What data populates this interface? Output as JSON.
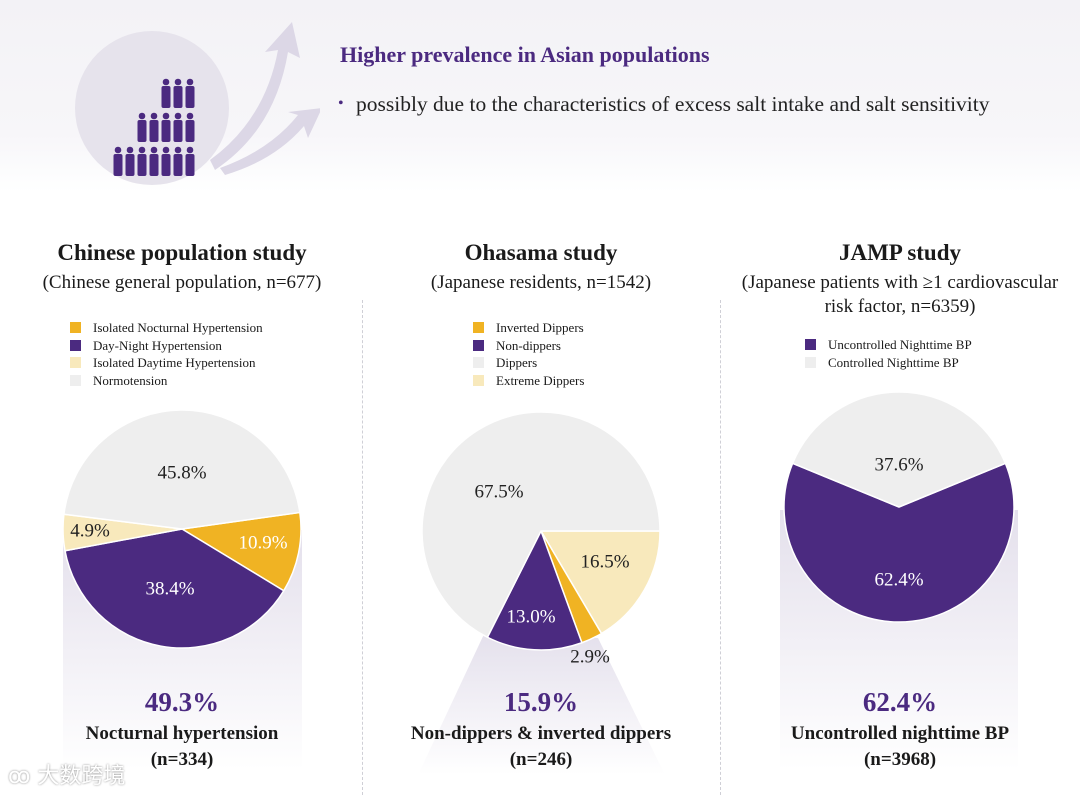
{
  "header": {
    "title": "Higher prevalence in Asian populations",
    "bullet": "possibly due to the characteristics of excess salt intake and salt sensitivity",
    "bullet_icon": "•",
    "illustration": "globe-people-pyramid-arrows-icon"
  },
  "colors": {
    "purple": "#4b2a80",
    "yellow": "#f0b323",
    "light_yellow": "#f8e9bc",
    "grey": "#eeeeee"
  },
  "chart_data": [
    {
      "type": "pie",
      "title": "Chinese population study",
      "subtitle": "(Chinese general population, n=677)",
      "legend": [
        "Isolated Nocturnal Hypertension",
        "Day-Night Hypertension",
        "Isolated Daytime Hypertension",
        "Normotension"
      ],
      "slices": [
        {
          "label": "Isolated Nocturnal Hypertension",
          "value": 10.9,
          "text": "10.9%",
          "color": "#f0b323"
        },
        {
          "label": "Day-Night Hypertension",
          "value": 38.4,
          "text": "38.4%",
          "color": "#4b2a80"
        },
        {
          "label": "Isolated Daytime Hypertension",
          "value": 4.9,
          "text": "4.9%",
          "color": "#f8e9bc"
        },
        {
          "label": "Normotension",
          "value": 45.8,
          "text": "45.8%",
          "color": "#eeeeee"
        }
      ],
      "highlight_value": "49.3%",
      "highlight_label": "Nocturnal hypertension",
      "highlight_n": "(n=334)"
    },
    {
      "type": "pie",
      "title": "Ohasama study",
      "subtitle": "(Japanese residents, n=1542)",
      "legend": [
        "Inverted Dippers",
        "Non-dippers",
        "Dippers",
        "Extreme Dippers"
      ],
      "slices": [
        {
          "label": "Extreme Dippers",
          "value": 16.5,
          "text": "16.5%",
          "color": "#f8e9bc"
        },
        {
          "label": "Inverted Dippers",
          "value": 2.9,
          "text": "2.9%",
          "color": "#f0b323"
        },
        {
          "label": "Non-dippers",
          "value": 13.0,
          "text": "13.0%",
          "color": "#4b2a80"
        },
        {
          "label": "Dippers",
          "value": 67.5,
          "text": "67.5%",
          "color": "#eeeeee"
        }
      ],
      "highlight_value": "15.9%",
      "highlight_label": "Non-dippers & inverted dippers",
      "highlight_n": "(n=246)"
    },
    {
      "type": "pie",
      "title": "JAMP study",
      "subtitle": "(Japanese patients with ≥1 cardiovascular risk factor, n=6359)",
      "legend": [
        "Uncontrolled Nighttime BP",
        "Controlled Nighttime BP"
      ],
      "slices": [
        {
          "label": "Uncontrolled Nighttime BP",
          "value": 62.4,
          "text": "62.4%",
          "color": "#4b2a80"
        },
        {
          "label": "Controlled Nighttime BP",
          "value": 37.6,
          "text": "37.6%",
          "color": "#eeeeee"
        }
      ],
      "highlight_value": "62.4%",
      "highlight_label": "Uncontrolled nighttime BP",
      "highlight_n": "(n=3968)"
    }
  ],
  "watermark": "大数跨境"
}
